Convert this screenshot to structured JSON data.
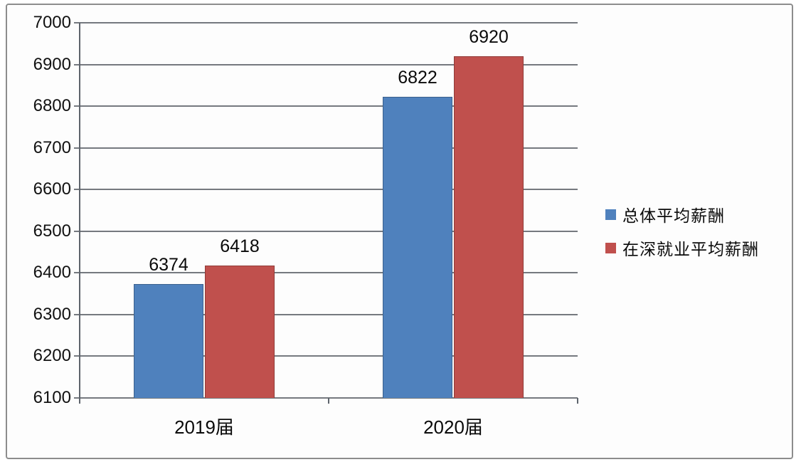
{
  "chart_data": {
    "type": "bar",
    "title": "",
    "categories": [
      "2019届",
      "2020届"
    ],
    "series": [
      {
        "name": "总体平均薪酬",
        "color": "#4F81BD",
        "values": [
          6374,
          6822
        ]
      },
      {
        "name": "在深就业平均薪酬",
        "color": "#C0504D",
        "values": [
          6418,
          6920
        ]
      }
    ],
    "ylim": [
      6100,
      7000
    ],
    "ytick_step": 100,
    "yticks": [
      7000,
      6900,
      6800,
      6700,
      6600,
      6500,
      6400,
      6300,
      6200,
      6100
    ],
    "grid": true,
    "legend_position": "right",
    "data_labels": true
  }
}
